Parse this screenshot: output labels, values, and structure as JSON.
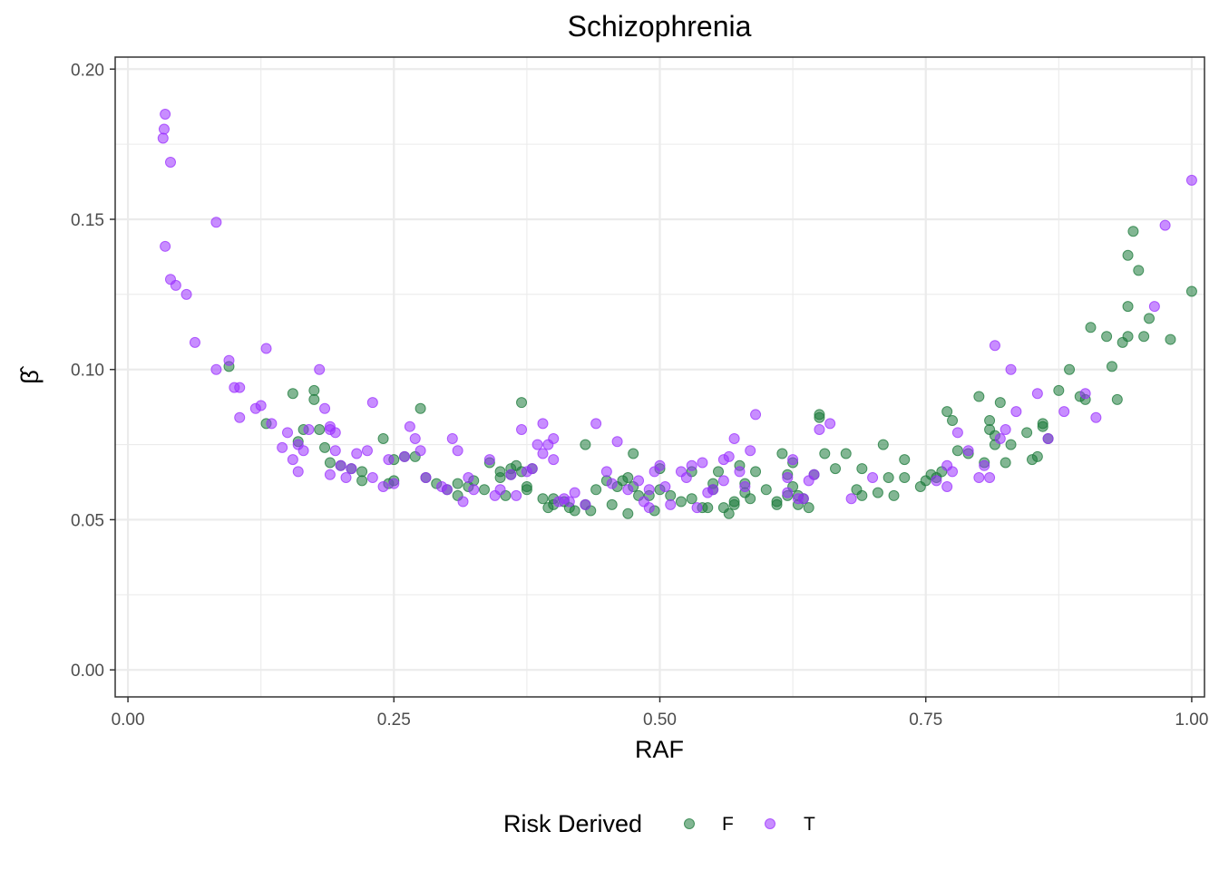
{
  "chart_data": {
    "type": "scatter",
    "title": "Schizophrenia",
    "xlabel": "RAF",
    "ylabel": "β̂",
    "xlim": [
      -0.012,
      1.012
    ],
    "ylim": [
      -0.009,
      0.204
    ],
    "x_ticks": [
      0.0,
      0.25,
      0.5,
      0.75,
      1.0
    ],
    "x_tick_labels": [
      "0.00",
      "0.25",
      "0.50",
      "0.75",
      "1.00"
    ],
    "y_ticks": [
      0.0,
      0.05,
      0.1,
      0.15,
      0.2
    ],
    "y_tick_labels": [
      "0.00",
      "0.05",
      "0.10",
      "0.15",
      "0.20"
    ],
    "grid": true,
    "legend": {
      "title": "Risk Derived",
      "position": "bottom"
    },
    "series": [
      {
        "name": "F",
        "color": "#1b7a3a",
        "points": [
          [
            0.095,
            0.101
          ],
          [
            0.13,
            0.082
          ],
          [
            0.155,
            0.092
          ],
          [
            0.16,
            0.076
          ],
          [
            0.165,
            0.08
          ],
          [
            0.175,
            0.09
          ],
          [
            0.175,
            0.093
          ],
          [
            0.18,
            0.08
          ],
          [
            0.185,
            0.074
          ],
          [
            0.19,
            0.069
          ],
          [
            0.2,
            0.068
          ],
          [
            0.21,
            0.067
          ],
          [
            0.22,
            0.066
          ],
          [
            0.22,
            0.063
          ],
          [
            0.24,
            0.077
          ],
          [
            0.245,
            0.062
          ],
          [
            0.25,
            0.07
          ],
          [
            0.25,
            0.063
          ],
          [
            0.26,
            0.071
          ],
          [
            0.27,
            0.071
          ],
          [
            0.275,
            0.087
          ],
          [
            0.28,
            0.064
          ],
          [
            0.29,
            0.062
          ],
          [
            0.3,
            0.06
          ],
          [
            0.31,
            0.062
          ],
          [
            0.31,
            0.058
          ],
          [
            0.32,
            0.061
          ],
          [
            0.325,
            0.063
          ],
          [
            0.335,
            0.06
          ],
          [
            0.34,
            0.069
          ],
          [
            0.35,
            0.066
          ],
          [
            0.35,
            0.064
          ],
          [
            0.355,
            0.058
          ],
          [
            0.36,
            0.067
          ],
          [
            0.36,
            0.065
          ],
          [
            0.365,
            0.068
          ],
          [
            0.37,
            0.089
          ],
          [
            0.37,
            0.066
          ],
          [
            0.375,
            0.061
          ],
          [
            0.375,
            0.06
          ],
          [
            0.38,
            0.067
          ],
          [
            0.39,
            0.057
          ],
          [
            0.395,
            0.054
          ],
          [
            0.4,
            0.055
          ],
          [
            0.4,
            0.057
          ],
          [
            0.41,
            0.056
          ],
          [
            0.415,
            0.054
          ],
          [
            0.42,
            0.053
          ],
          [
            0.43,
            0.075
          ],
          [
            0.43,
            0.055
          ],
          [
            0.435,
            0.053
          ],
          [
            0.44,
            0.06
          ],
          [
            0.45,
            0.063
          ],
          [
            0.455,
            0.055
          ],
          [
            0.46,
            0.061
          ],
          [
            0.465,
            0.063
          ],
          [
            0.47,
            0.064
          ],
          [
            0.47,
            0.052
          ],
          [
            0.475,
            0.072
          ],
          [
            0.475,
            0.061
          ],
          [
            0.48,
            0.058
          ],
          [
            0.49,
            0.058
          ],
          [
            0.495,
            0.053
          ],
          [
            0.5,
            0.06
          ],
          [
            0.5,
            0.067
          ],
          [
            0.51,
            0.058
          ],
          [
            0.52,
            0.056
          ],
          [
            0.53,
            0.066
          ],
          [
            0.53,
            0.057
          ],
          [
            0.54,
            0.054
          ],
          [
            0.545,
            0.054
          ],
          [
            0.55,
            0.062
          ],
          [
            0.55,
            0.06
          ],
          [
            0.555,
            0.066
          ],
          [
            0.56,
            0.054
          ],
          [
            0.565,
            0.052
          ],
          [
            0.57,
            0.055
          ],
          [
            0.57,
            0.056
          ],
          [
            0.575,
            0.068
          ],
          [
            0.58,
            0.062
          ],
          [
            0.58,
            0.059
          ],
          [
            0.585,
            0.057
          ],
          [
            0.59,
            0.066
          ],
          [
            0.6,
            0.06
          ],
          [
            0.61,
            0.056
          ],
          [
            0.61,
            0.055
          ],
          [
            0.615,
            0.072
          ],
          [
            0.62,
            0.065
          ],
          [
            0.62,
            0.058
          ],
          [
            0.625,
            0.069
          ],
          [
            0.625,
            0.061
          ],
          [
            0.63,
            0.058
          ],
          [
            0.63,
            0.055
          ],
          [
            0.635,
            0.057
          ],
          [
            0.64,
            0.054
          ],
          [
            0.645,
            0.065
          ],
          [
            0.65,
            0.085
          ],
          [
            0.65,
            0.084
          ],
          [
            0.655,
            0.072
          ],
          [
            0.665,
            0.067
          ],
          [
            0.675,
            0.072
          ],
          [
            0.685,
            0.06
          ],
          [
            0.69,
            0.058
          ],
          [
            0.69,
            0.067
          ],
          [
            0.705,
            0.059
          ],
          [
            0.71,
            0.075
          ],
          [
            0.715,
            0.064
          ],
          [
            0.72,
            0.058
          ],
          [
            0.73,
            0.07
          ],
          [
            0.73,
            0.064
          ],
          [
            0.745,
            0.061
          ],
          [
            0.75,
            0.063
          ],
          [
            0.755,
            0.065
          ],
          [
            0.76,
            0.064
          ],
          [
            0.765,
            0.066
          ],
          [
            0.77,
            0.086
          ],
          [
            0.775,
            0.083
          ],
          [
            0.78,
            0.073
          ],
          [
            0.79,
            0.072
          ],
          [
            0.8,
            0.091
          ],
          [
            0.805,
            0.069
          ],
          [
            0.81,
            0.083
          ],
          [
            0.81,
            0.08
          ],
          [
            0.815,
            0.078
          ],
          [
            0.815,
            0.075
          ],
          [
            0.82,
            0.089
          ],
          [
            0.825,
            0.069
          ],
          [
            0.83,
            0.075
          ],
          [
            0.845,
            0.079
          ],
          [
            0.85,
            0.07
          ],
          [
            0.855,
            0.071
          ],
          [
            0.86,
            0.082
          ],
          [
            0.86,
            0.081
          ],
          [
            0.865,
            0.077
          ],
          [
            0.875,
            0.093
          ],
          [
            0.885,
            0.1
          ],
          [
            0.895,
            0.091
          ],
          [
            0.9,
            0.09
          ],
          [
            0.905,
            0.114
          ],
          [
            0.92,
            0.111
          ],
          [
            0.925,
            0.101
          ],
          [
            0.93,
            0.09
          ],
          [
            0.935,
            0.109
          ],
          [
            0.94,
            0.111
          ],
          [
            0.94,
            0.121
          ],
          [
            0.94,
            0.138
          ],
          [
            0.945,
            0.146
          ],
          [
            0.95,
            0.133
          ],
          [
            0.955,
            0.111
          ],
          [
            0.96,
            0.117
          ],
          [
            0.98,
            0.11
          ],
          [
            1.0,
            0.126
          ]
        ]
      },
      {
        "name": "T",
        "color": "#9b30ff",
        "points": [
          [
            0.033,
            0.177
          ],
          [
            0.034,
            0.18
          ],
          [
            0.035,
            0.185
          ],
          [
            0.035,
            0.141
          ],
          [
            0.04,
            0.169
          ],
          [
            0.04,
            0.13
          ],
          [
            0.045,
            0.128
          ],
          [
            0.055,
            0.125
          ],
          [
            0.063,
            0.109
          ],
          [
            0.083,
            0.149
          ],
          [
            0.083,
            0.1
          ],
          [
            0.095,
            0.103
          ],
          [
            0.1,
            0.094
          ],
          [
            0.105,
            0.094
          ],
          [
            0.105,
            0.084
          ],
          [
            0.12,
            0.087
          ],
          [
            0.125,
            0.088
          ],
          [
            0.13,
            0.107
          ],
          [
            0.135,
            0.082
          ],
          [
            0.145,
            0.074
          ],
          [
            0.15,
            0.079
          ],
          [
            0.155,
            0.07
          ],
          [
            0.16,
            0.075
          ],
          [
            0.16,
            0.066
          ],
          [
            0.165,
            0.073
          ],
          [
            0.17,
            0.08
          ],
          [
            0.18,
            0.1
          ],
          [
            0.185,
            0.087
          ],
          [
            0.19,
            0.081
          ],
          [
            0.19,
            0.08
          ],
          [
            0.19,
            0.065
          ],
          [
            0.195,
            0.079
          ],
          [
            0.195,
            0.073
          ],
          [
            0.2,
            0.068
          ],
          [
            0.205,
            0.064
          ],
          [
            0.21,
            0.067
          ],
          [
            0.215,
            0.072
          ],
          [
            0.225,
            0.073
          ],
          [
            0.23,
            0.089
          ],
          [
            0.23,
            0.064
          ],
          [
            0.24,
            0.061
          ],
          [
            0.245,
            0.07
          ],
          [
            0.25,
            0.062
          ],
          [
            0.26,
            0.071
          ],
          [
            0.265,
            0.081
          ],
          [
            0.27,
            0.077
          ],
          [
            0.275,
            0.073
          ],
          [
            0.28,
            0.064
          ],
          [
            0.295,
            0.061
          ],
          [
            0.3,
            0.06
          ],
          [
            0.305,
            0.077
          ],
          [
            0.31,
            0.073
          ],
          [
            0.315,
            0.056
          ],
          [
            0.32,
            0.064
          ],
          [
            0.325,
            0.06
          ],
          [
            0.34,
            0.07
          ],
          [
            0.345,
            0.058
          ],
          [
            0.35,
            0.06
          ],
          [
            0.36,
            0.065
          ],
          [
            0.365,
            0.058
          ],
          [
            0.37,
            0.08
          ],
          [
            0.375,
            0.066
          ],
          [
            0.38,
            0.067
          ],
          [
            0.385,
            0.075
          ],
          [
            0.39,
            0.072
          ],
          [
            0.39,
            0.082
          ],
          [
            0.395,
            0.075
          ],
          [
            0.4,
            0.07
          ],
          [
            0.4,
            0.077
          ],
          [
            0.405,
            0.056
          ],
          [
            0.41,
            0.057
          ],
          [
            0.415,
            0.056
          ],
          [
            0.42,
            0.059
          ],
          [
            0.43,
            0.055
          ],
          [
            0.44,
            0.082
          ],
          [
            0.45,
            0.066
          ],
          [
            0.455,
            0.062
          ],
          [
            0.46,
            0.076
          ],
          [
            0.47,
            0.06
          ],
          [
            0.48,
            0.063
          ],
          [
            0.485,
            0.056
          ],
          [
            0.49,
            0.054
          ],
          [
            0.49,
            0.06
          ],
          [
            0.495,
            0.066
          ],
          [
            0.5,
            0.068
          ],
          [
            0.505,
            0.061
          ],
          [
            0.51,
            0.055
          ],
          [
            0.52,
            0.066
          ],
          [
            0.525,
            0.064
          ],
          [
            0.53,
            0.068
          ],
          [
            0.535,
            0.054
          ],
          [
            0.54,
            0.069
          ],
          [
            0.545,
            0.059
          ],
          [
            0.55,
            0.06
          ],
          [
            0.56,
            0.063
          ],
          [
            0.56,
            0.07
          ],
          [
            0.565,
            0.071
          ],
          [
            0.57,
            0.077
          ],
          [
            0.575,
            0.066
          ],
          [
            0.58,
            0.061
          ],
          [
            0.585,
            0.073
          ],
          [
            0.59,
            0.085
          ],
          [
            0.62,
            0.064
          ],
          [
            0.62,
            0.059
          ],
          [
            0.625,
            0.07
          ],
          [
            0.63,
            0.057
          ],
          [
            0.635,
            0.057
          ],
          [
            0.64,
            0.063
          ],
          [
            0.645,
            0.065
          ],
          [
            0.65,
            0.08
          ],
          [
            0.66,
            0.082
          ],
          [
            0.68,
            0.057
          ],
          [
            0.7,
            0.064
          ],
          [
            0.76,
            0.063
          ],
          [
            0.77,
            0.068
          ],
          [
            0.775,
            0.066
          ],
          [
            0.77,
            0.061
          ],
          [
            0.78,
            0.079
          ],
          [
            0.79,
            0.073
          ],
          [
            0.8,
            0.064
          ],
          [
            0.805,
            0.068
          ],
          [
            0.81,
            0.064
          ],
          [
            0.815,
            0.108
          ],
          [
            0.82,
            0.077
          ],
          [
            0.825,
            0.08
          ],
          [
            0.83,
            0.1
          ],
          [
            0.835,
            0.086
          ],
          [
            0.855,
            0.092
          ],
          [
            0.865,
            0.077
          ],
          [
            0.88,
            0.086
          ],
          [
            0.9,
            0.092
          ],
          [
            0.91,
            0.084
          ],
          [
            0.965,
            0.121
          ],
          [
            0.975,
            0.148
          ],
          [
            1.0,
            0.163
          ]
        ]
      }
    ]
  }
}
